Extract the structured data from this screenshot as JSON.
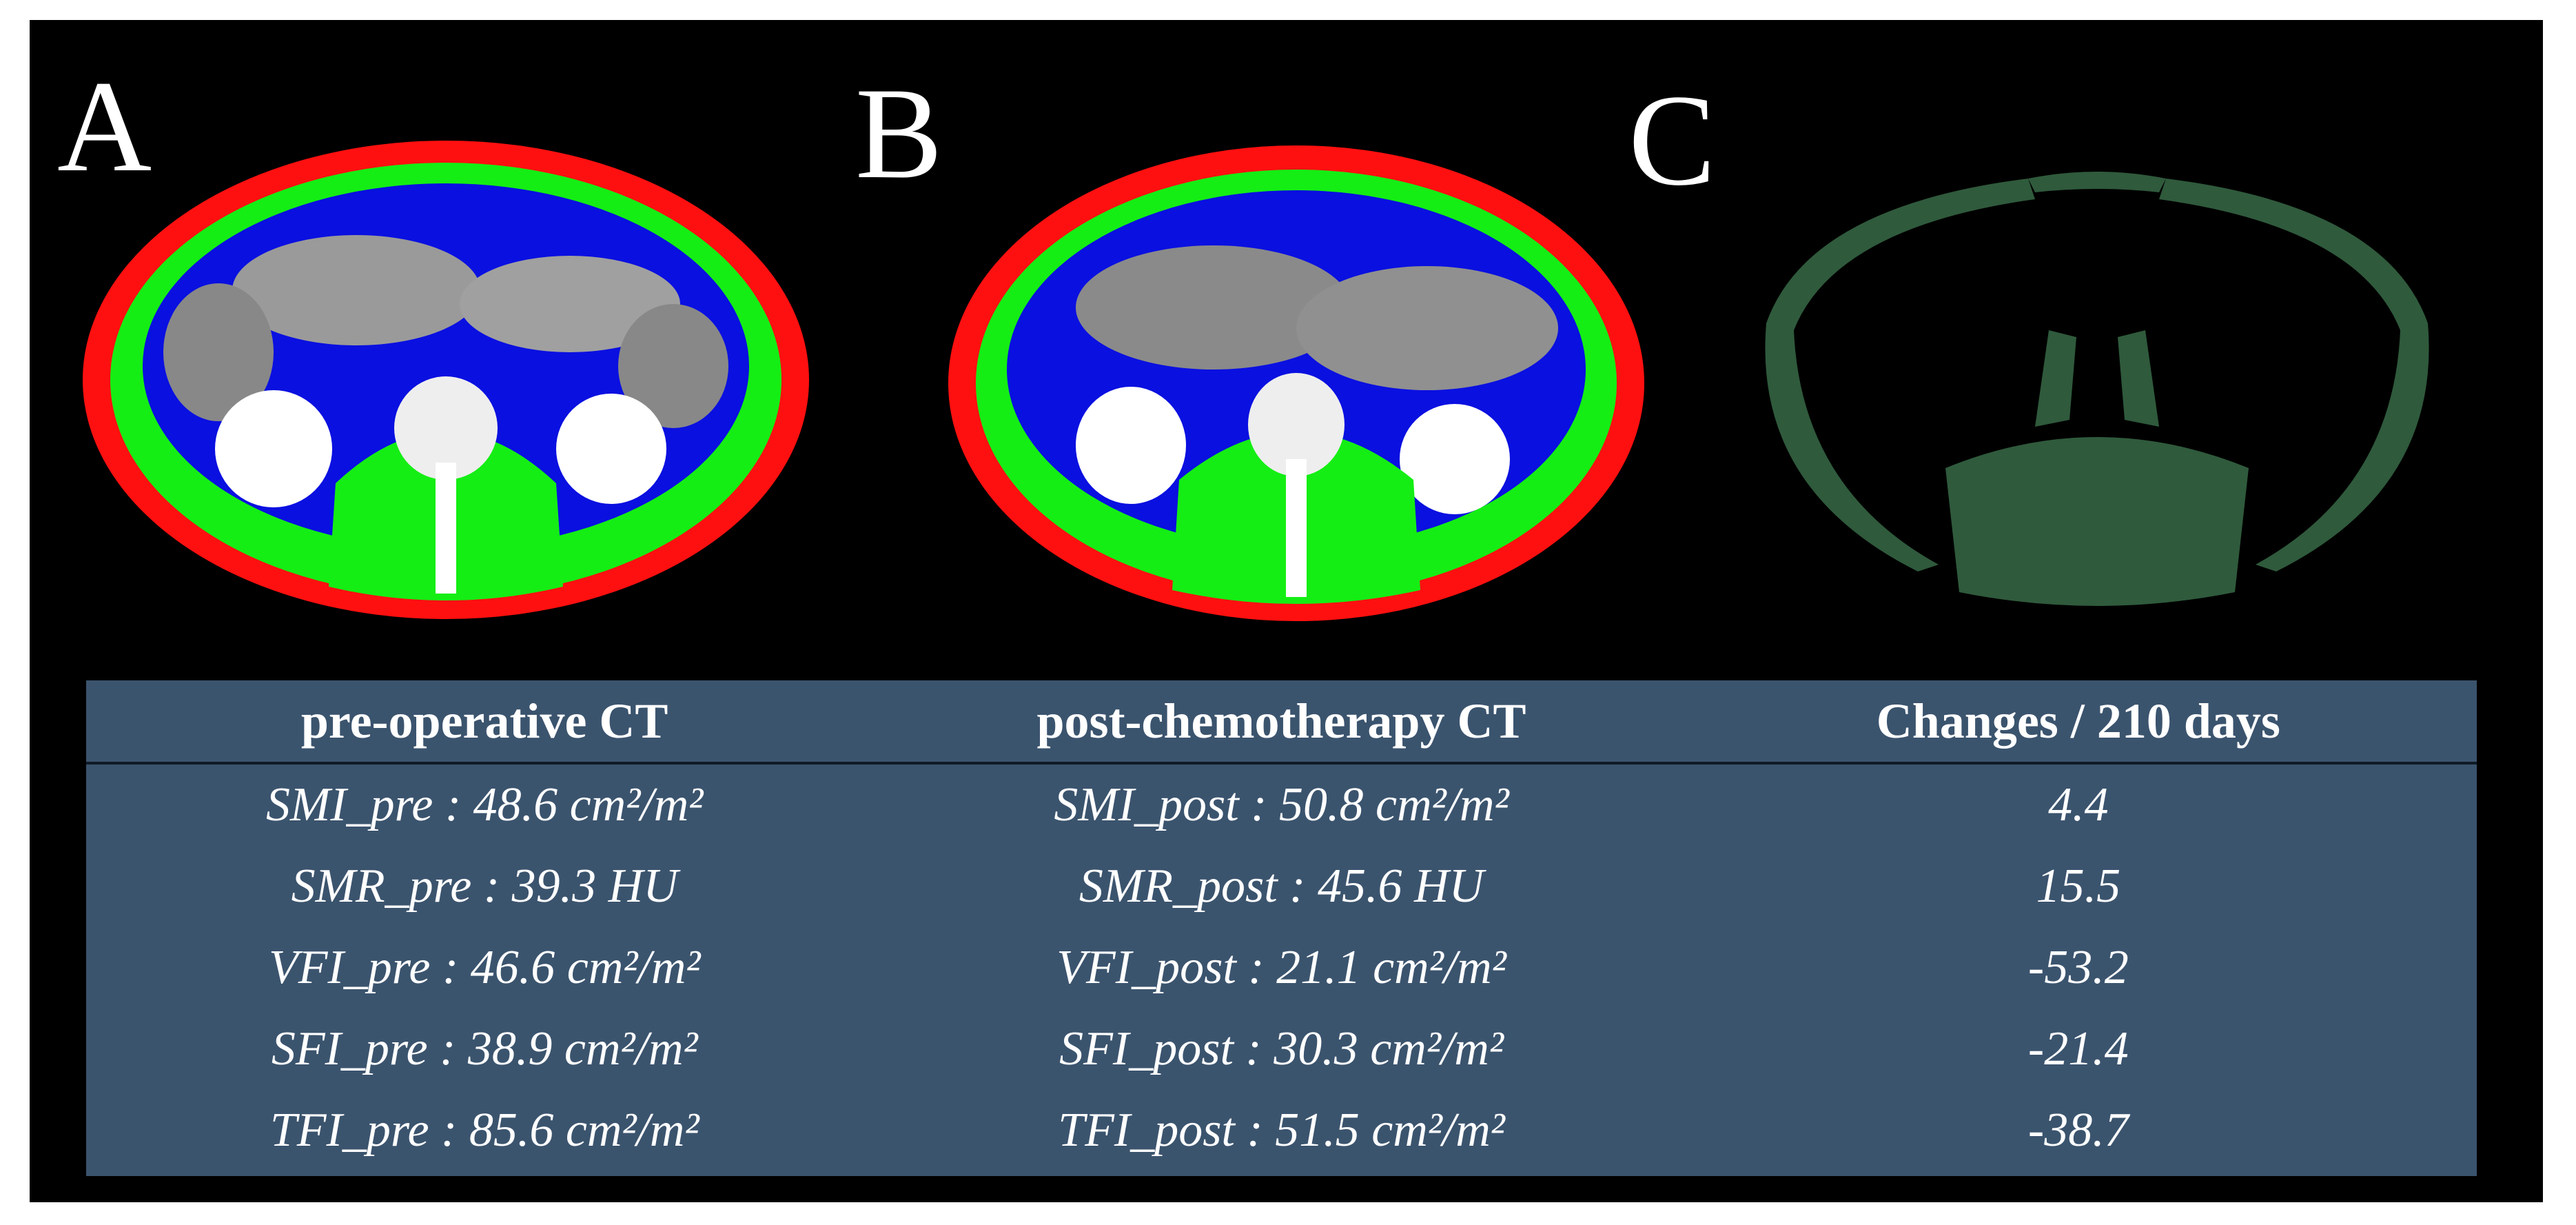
{
  "panels": [
    {
      "label": "A"
    },
    {
      "label": "B"
    },
    {
      "label": "C"
    }
  ],
  "table": {
    "header": [
      "pre-operative CT",
      "post-chemotherapy CT",
      "Changes / 210 days"
    ],
    "rows": [
      [
        "SMI_pre : 48.6 cm²/m²",
        "SMI_post : 50.8 cm²/m²",
        "4.4"
      ],
      [
        "SMR_pre : 39.3 HU",
        "SMR_post : 45.6 HU",
        "15.5"
      ],
      [
        "VFI_pre : 46.6 cm²/m²",
        "VFI_post : 21.1 cm²/m²",
        "-53.2"
      ],
      [
        "SFI_pre : 38.9 cm²/m²",
        "SFI_post : 30.3 cm²/m²",
        "-21.4"
      ],
      [
        "TFI_pre : 85.6 cm²/m²",
        "TFI_post : 51.5 cm²/m²",
        "-38.7"
      ]
    ]
  }
}
